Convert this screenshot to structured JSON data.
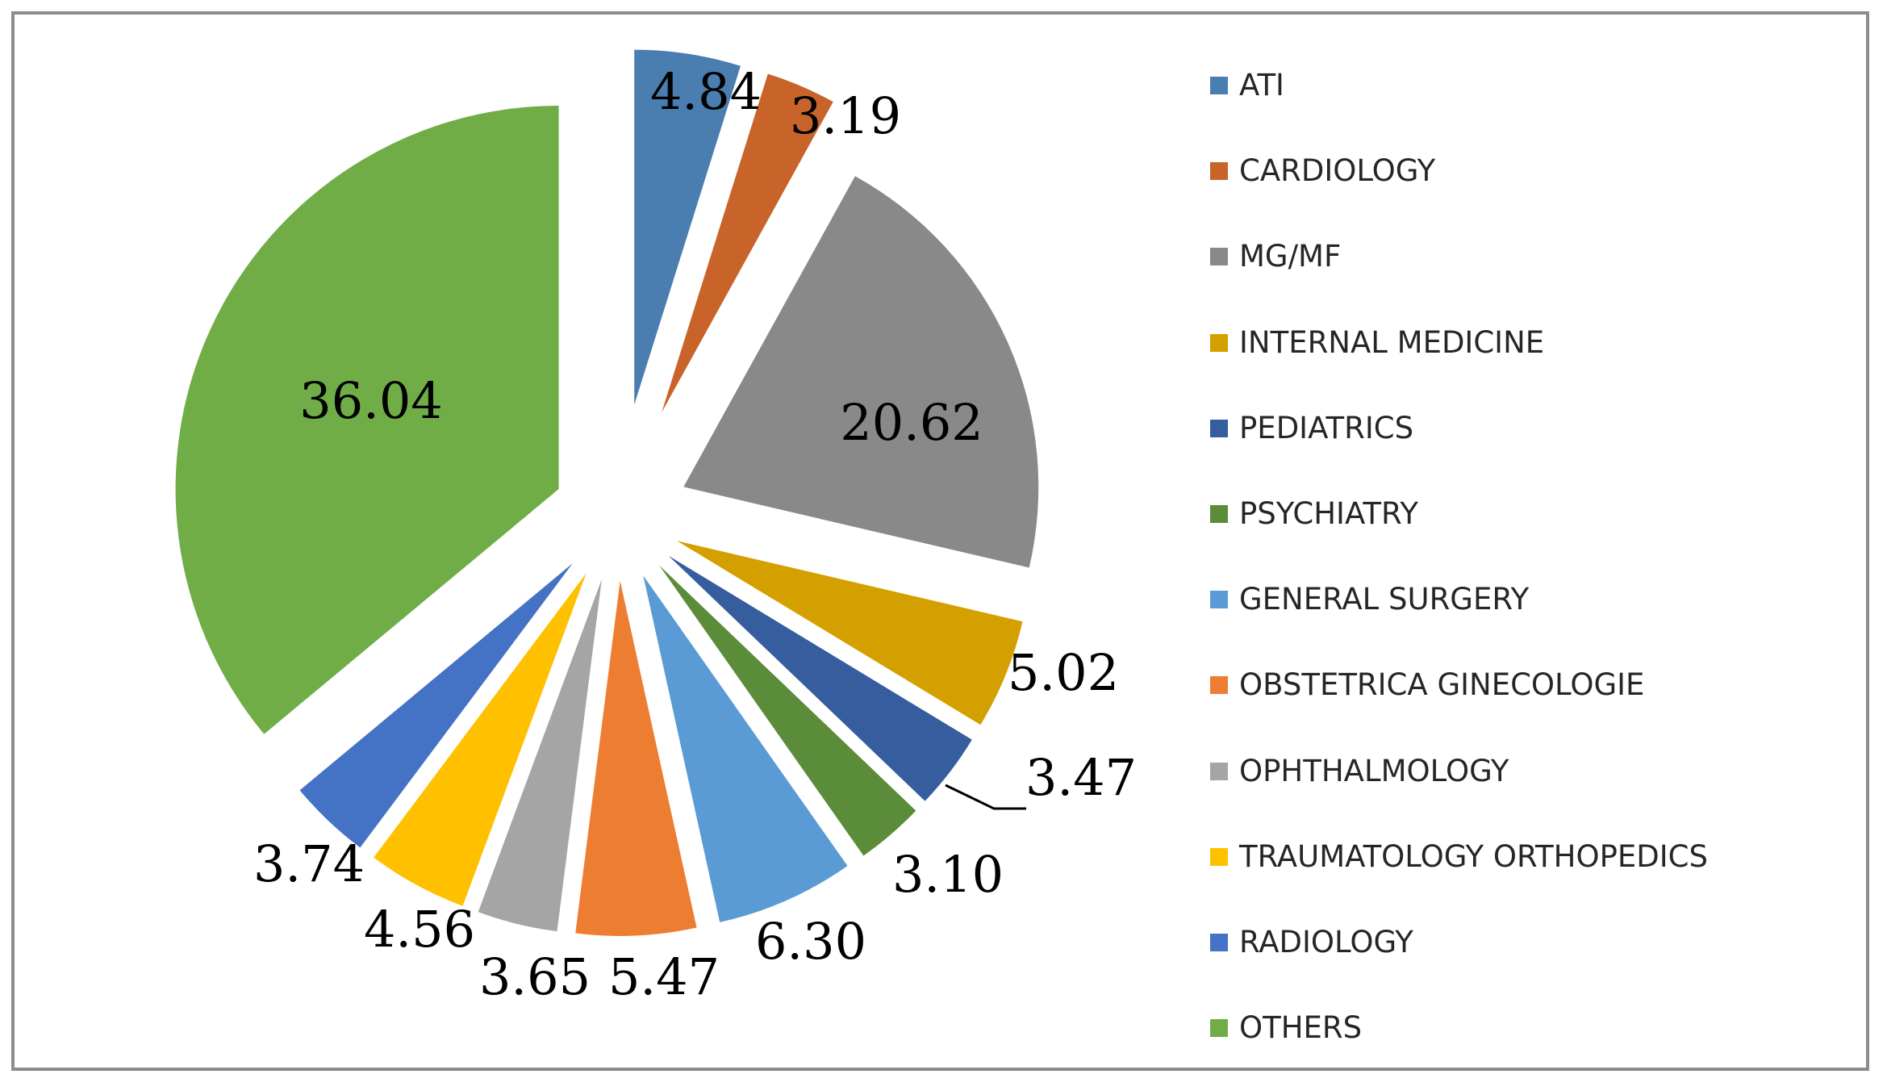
{
  "chart_data": {
    "type": "pie",
    "exploded": true,
    "legend_position": "right",
    "categories": [
      "ATI",
      "CARDIOLOGY",
      "MG/MF",
      "INTERNAL MEDICINE",
      "PEDIATRICS",
      "PSYCHIATRY",
      "GENERAL SURGERY",
      "OBSTETRICA GINECOLOGIE",
      "OPHTHALMOLOGY",
      "TRAUMATOLOGY ORTHOPEDICS",
      "RADIOLOGY",
      "OTHERS"
    ],
    "values": [
      4.84,
      3.19,
      20.62,
      5.02,
      3.47,
      3.1,
      6.3,
      5.47,
      3.65,
      4.56,
      3.74,
      36.04
    ],
    "value_labels": [
      "4.84",
      "3.19",
      "20.62",
      "5.02",
      "3.47",
      "3.10",
      "6.30",
      "5.47",
      "3.65",
      "4.56",
      "3.74",
      "36.04"
    ],
    "colors": [
      "#4a7eb0",
      "#c8642a",
      "#898989",
      "#d4a000",
      "#365d9e",
      "#5a8c3a",
      "#5b9bd5",
      "#ed7d31",
      "#a5a5a5",
      "#ffc000",
      "#4472c4",
      "#70ad47"
    ]
  }
}
